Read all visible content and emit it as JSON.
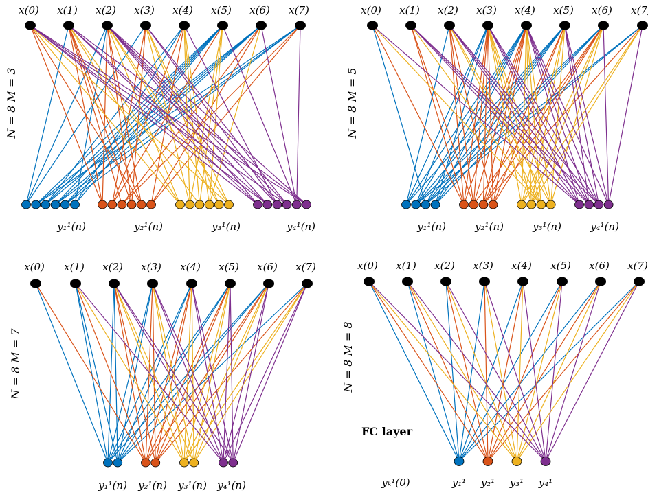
{
  "colors": [
    "#0072BD",
    "#D95319",
    "#EDB120",
    "#7E2F8E"
  ],
  "node_fill_input": "#000000",
  "panels": [
    {
      "id": "panel-n8-m3",
      "side_label": "N = 8  M = 3",
      "inputs": [
        "x(0)",
        "x(1)",
        "x(2)",
        "x(3)",
        "x(4)",
        "x(5)",
        "x(6)",
        "x(7)"
      ],
      "outputs_per_group": 6,
      "group_labels": [
        "y₁¹(n)",
        "y₂¹(n)",
        "y₃¹(n)",
        "y₄¹(n)"
      ],
      "extra_labels": []
    },
    {
      "id": "panel-n8-m5",
      "side_label": "N = 8  M = 5",
      "inputs": [
        "x(0)",
        "x(1)",
        "x(2)",
        "x(3)",
        "x(4)",
        "x(5)",
        "x(6)",
        "x(7)"
      ],
      "outputs_per_group": 4,
      "group_labels": [
        "y₁¹(n)",
        "y₂¹(n)",
        "y₃¹(n)",
        "y₄¹(n)"
      ],
      "extra_labels": []
    },
    {
      "id": "panel-n8-m7",
      "side_label": "N = 8  M = 7",
      "inputs": [
        "x(0)",
        "x(1)",
        "x(2)",
        "x(3)",
        "x(4)",
        "x(5)",
        "x(6)",
        "x(7)"
      ],
      "outputs_per_group": 2,
      "group_labels": [
        "y₁¹(n)",
        "y₂¹(n)",
        "y₃¹(n)",
        "y₄¹(n)"
      ],
      "extra_labels": []
    },
    {
      "id": "panel-n8-m8",
      "side_label": "N = 8  M = 8",
      "inputs": [
        "x(0)",
        "x(1)",
        "x(2)",
        "x(3)",
        "x(4)",
        "x(5)",
        "x(6)",
        "x(7)"
      ],
      "outputs_per_group": 1,
      "group_labels": [
        "y₁¹",
        "y₂¹",
        "y₃¹",
        "y₄¹"
      ],
      "extra_labels": [
        "FC layer",
        "yₖ¹(0)"
      ]
    }
  ]
}
